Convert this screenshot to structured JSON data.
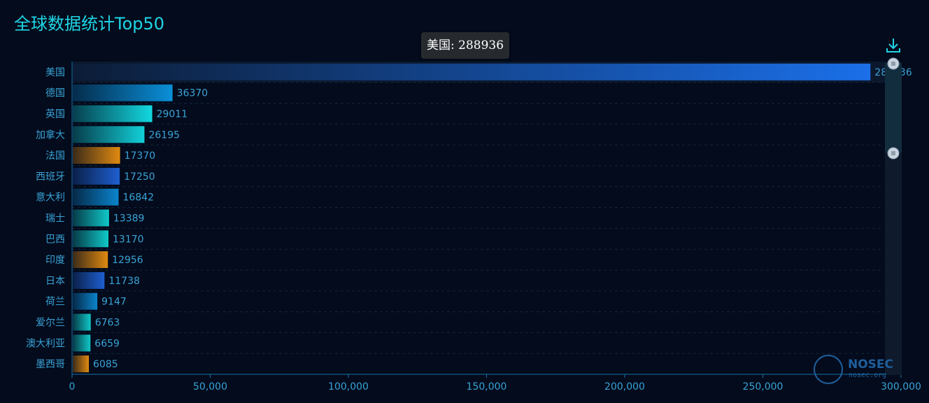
{
  "title": "全球数据统计Top50",
  "tooltip": "美国: 288936",
  "watermark": {
    "name": "NOSEC",
    "sub": "nosec.org"
  },
  "chart_data": {
    "type": "bar",
    "orientation": "horizontal",
    "title": "全球数据统计Top50",
    "categories": [
      "美国",
      "德国",
      "英国",
      "加拿大",
      "法国",
      "西班牙",
      "意大利",
      "瑞士",
      "巴西",
      "印度",
      "日本",
      "荷兰",
      "爱尔兰",
      "澳大利亚",
      "墨西哥"
    ],
    "values": [
      288936,
      36370,
      29011,
      26195,
      17370,
      17250,
      16842,
      13389,
      13170,
      12956,
      11738,
      9147,
      6763,
      6659,
      6085
    ],
    "bar_colors": [
      "#1b6fe8",
      "#0a8fd8",
      "#12d8e0",
      "#12d0d8",
      "#e08a10",
      "#1e5fd0",
      "#0b84cc",
      "#10c9c9",
      "#10c9c9",
      "#e08a10",
      "#1e5fd0",
      "#0b84cc",
      "#10c9c9",
      "#10c9c9",
      "#e08a10"
    ],
    "xlim": [
      0,
      300000
    ],
    "xticks": [
      "0",
      "50,000",
      "100,000",
      "150,000",
      "200,000",
      "250,000",
      "300,000"
    ],
    "grid": true,
    "datazoom": "vertical slider on right"
  },
  "colors": {
    "background": "#030b1c",
    "title": "#1fd6e6",
    "axis": "#1a6fa8",
    "label": "#3aa3d6",
    "grid": "#17253a"
  }
}
